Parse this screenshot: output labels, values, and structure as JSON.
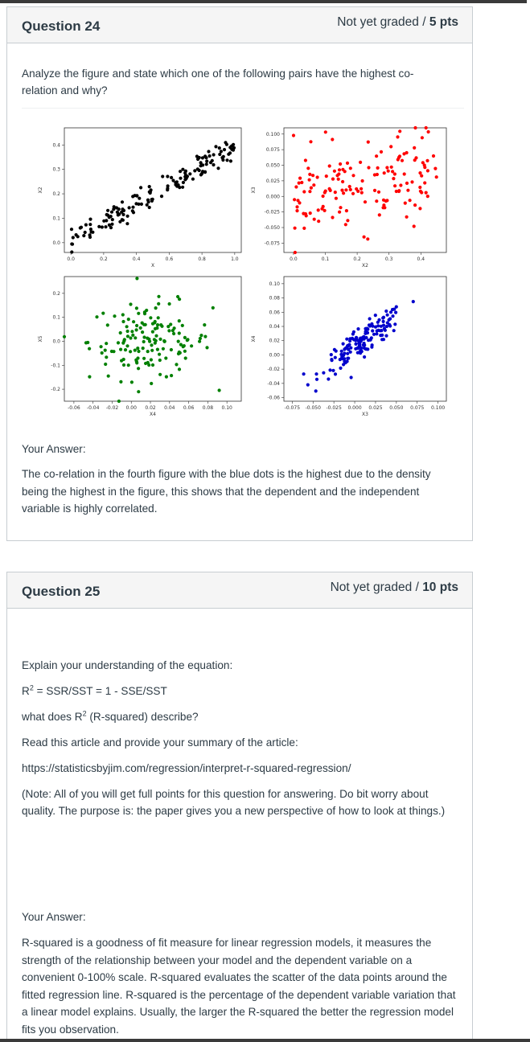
{
  "questions": [
    {
      "title": "Question 24",
      "status": "Not yet graded",
      "points": "5 pts",
      "prompt": "Analyze the figure and state which one of the following pairs have the highest co-relation and why?",
      "answer_label": "Your Answer:",
      "answer": "The co-relation in the fourth figure with the blue dots is the highest due to the density being the highest in the figure, this shows that the dependent and the independent variable is highly correlated."
    },
    {
      "title": "Question 25",
      "status": "Not yet graded",
      "points": "10 pts",
      "line1": "Explain your understanding of the equation:",
      "eq_r": "R",
      "eq_sup": "2",
      "eq_rest": " = SSR/SST = 1 - SSE/SST",
      "line3_pre": "what does R",
      "line3_sup": "2",
      "line3_post": " (R-squared) describe?",
      "line4": "Read this article and provide your summary of the article:",
      "url": "https://statisticsbyjim.com/regression/interpret-r-squared-regression/",
      "note": "(Note: All of you will get full points for this question for answering. Do bit worry about quality. The purpose is: the paper gives you a new perspective of how to look at things.)",
      "answer_label": "Your Answer:",
      "answer": "R-squared is a goodness of fit measure for linear regression models, it measures the strength of the relationship between your model and the dependent variable on a convenient 0-100% scale. R-squared evaluates the scatter of the data points around the fitted regression line. R-squared is the percentage of the dependent variable variation that a linear model explains. Usually, the larger the R-squared the better the regression model fits you observation."
    }
  ],
  "chart_data": [
    {
      "type": "scatter",
      "color": "#000000",
      "xlabel": "X",
      "ylabel": "X2",
      "xlim": [
        -0.04,
        1.04
      ],
      "ylim": [
        -0.04,
        0.47
      ],
      "xticks": [
        "0.0",
        "0.2",
        "0.4",
        "0.6",
        "0.8",
        "1.0"
      ],
      "xtick_values": [
        0,
        0.2,
        0.4,
        0.6,
        0.8,
        1.0
      ],
      "yticks": [
        "0.0",
        "0.1",
        "0.2",
        "0.3",
        "0.4"
      ],
      "ytick_values": [
        0,
        0.1,
        0.2,
        0.3,
        0.4
      ],
      "pattern": "strong positive linear"
    },
    {
      "type": "scatter",
      "color": "#ff0000",
      "xlabel": "X2",
      "ylabel": "X3",
      "xlim": [
        -0.03,
        0.48
      ],
      "ylim": [
        -0.09,
        0.11
      ],
      "xticks": [
        "0.0",
        "0.1",
        "0.2",
        "0.3",
        "0.4"
      ],
      "xtick_values": [
        0,
        0.1,
        0.2,
        0.3,
        0.4
      ],
      "yticks": [
        "0.100",
        "0.075",
        "0.050",
        "0.025",
        "0.000",
        "-0.025",
        "-0.050",
        "-0.075"
      ],
      "ytick_values": [
        0.1,
        0.075,
        0.05,
        0.025,
        0,
        -0.025,
        -0.05,
        -0.075
      ],
      "pattern": "weak positive, widely scattered"
    },
    {
      "type": "scatter",
      "color": "#008000",
      "xlabel": "X4",
      "ylabel": "X5",
      "xlim": [
        -0.07,
        0.115
      ],
      "ylim": [
        -0.25,
        0.27
      ],
      "xticks": [
        "-0.06",
        "-0.04",
        "-0.02",
        "0.00",
        "0.02",
        "0.04",
        "0.06",
        "0.08",
        "0.10"
      ],
      "xtick_values": [
        -0.06,
        -0.04,
        -0.02,
        0,
        0.02,
        0.04,
        0.06,
        0.08,
        0.1
      ],
      "yticks": [
        "0.2",
        "0.1",
        "0.0",
        "-0.1",
        "-0.2"
      ],
      "ytick_values": [
        0.2,
        0.1,
        0,
        -0.1,
        -0.2
      ],
      "pattern": "no correlation, round cloud"
    },
    {
      "type": "scatter",
      "color": "#0000cc",
      "xlabel": "X3",
      "ylabel": "X4",
      "xlim": [
        -0.085,
        0.11
      ],
      "ylim": [
        -0.065,
        0.11
      ],
      "xticks": [
        "-0.075",
        "-0.050",
        "-0.025",
        "0.000",
        "0.025",
        "0.050",
        "0.075",
        "0.100"
      ],
      "xtick_values": [
        -0.075,
        -0.05,
        -0.025,
        0,
        0.025,
        0.05,
        0.075,
        0.1
      ],
      "yticks": [
        "0.10",
        "0.08",
        "0.06",
        "0.04",
        "0.02",
        "0.00",
        "-0.02",
        "-0.04",
        "-0.06"
      ],
      "ytick_values": [
        0.1,
        0.08,
        0.06,
        0.04,
        0.02,
        0,
        -0.02,
        -0.04,
        -0.06
      ],
      "pattern": "strong positive linear"
    }
  ]
}
